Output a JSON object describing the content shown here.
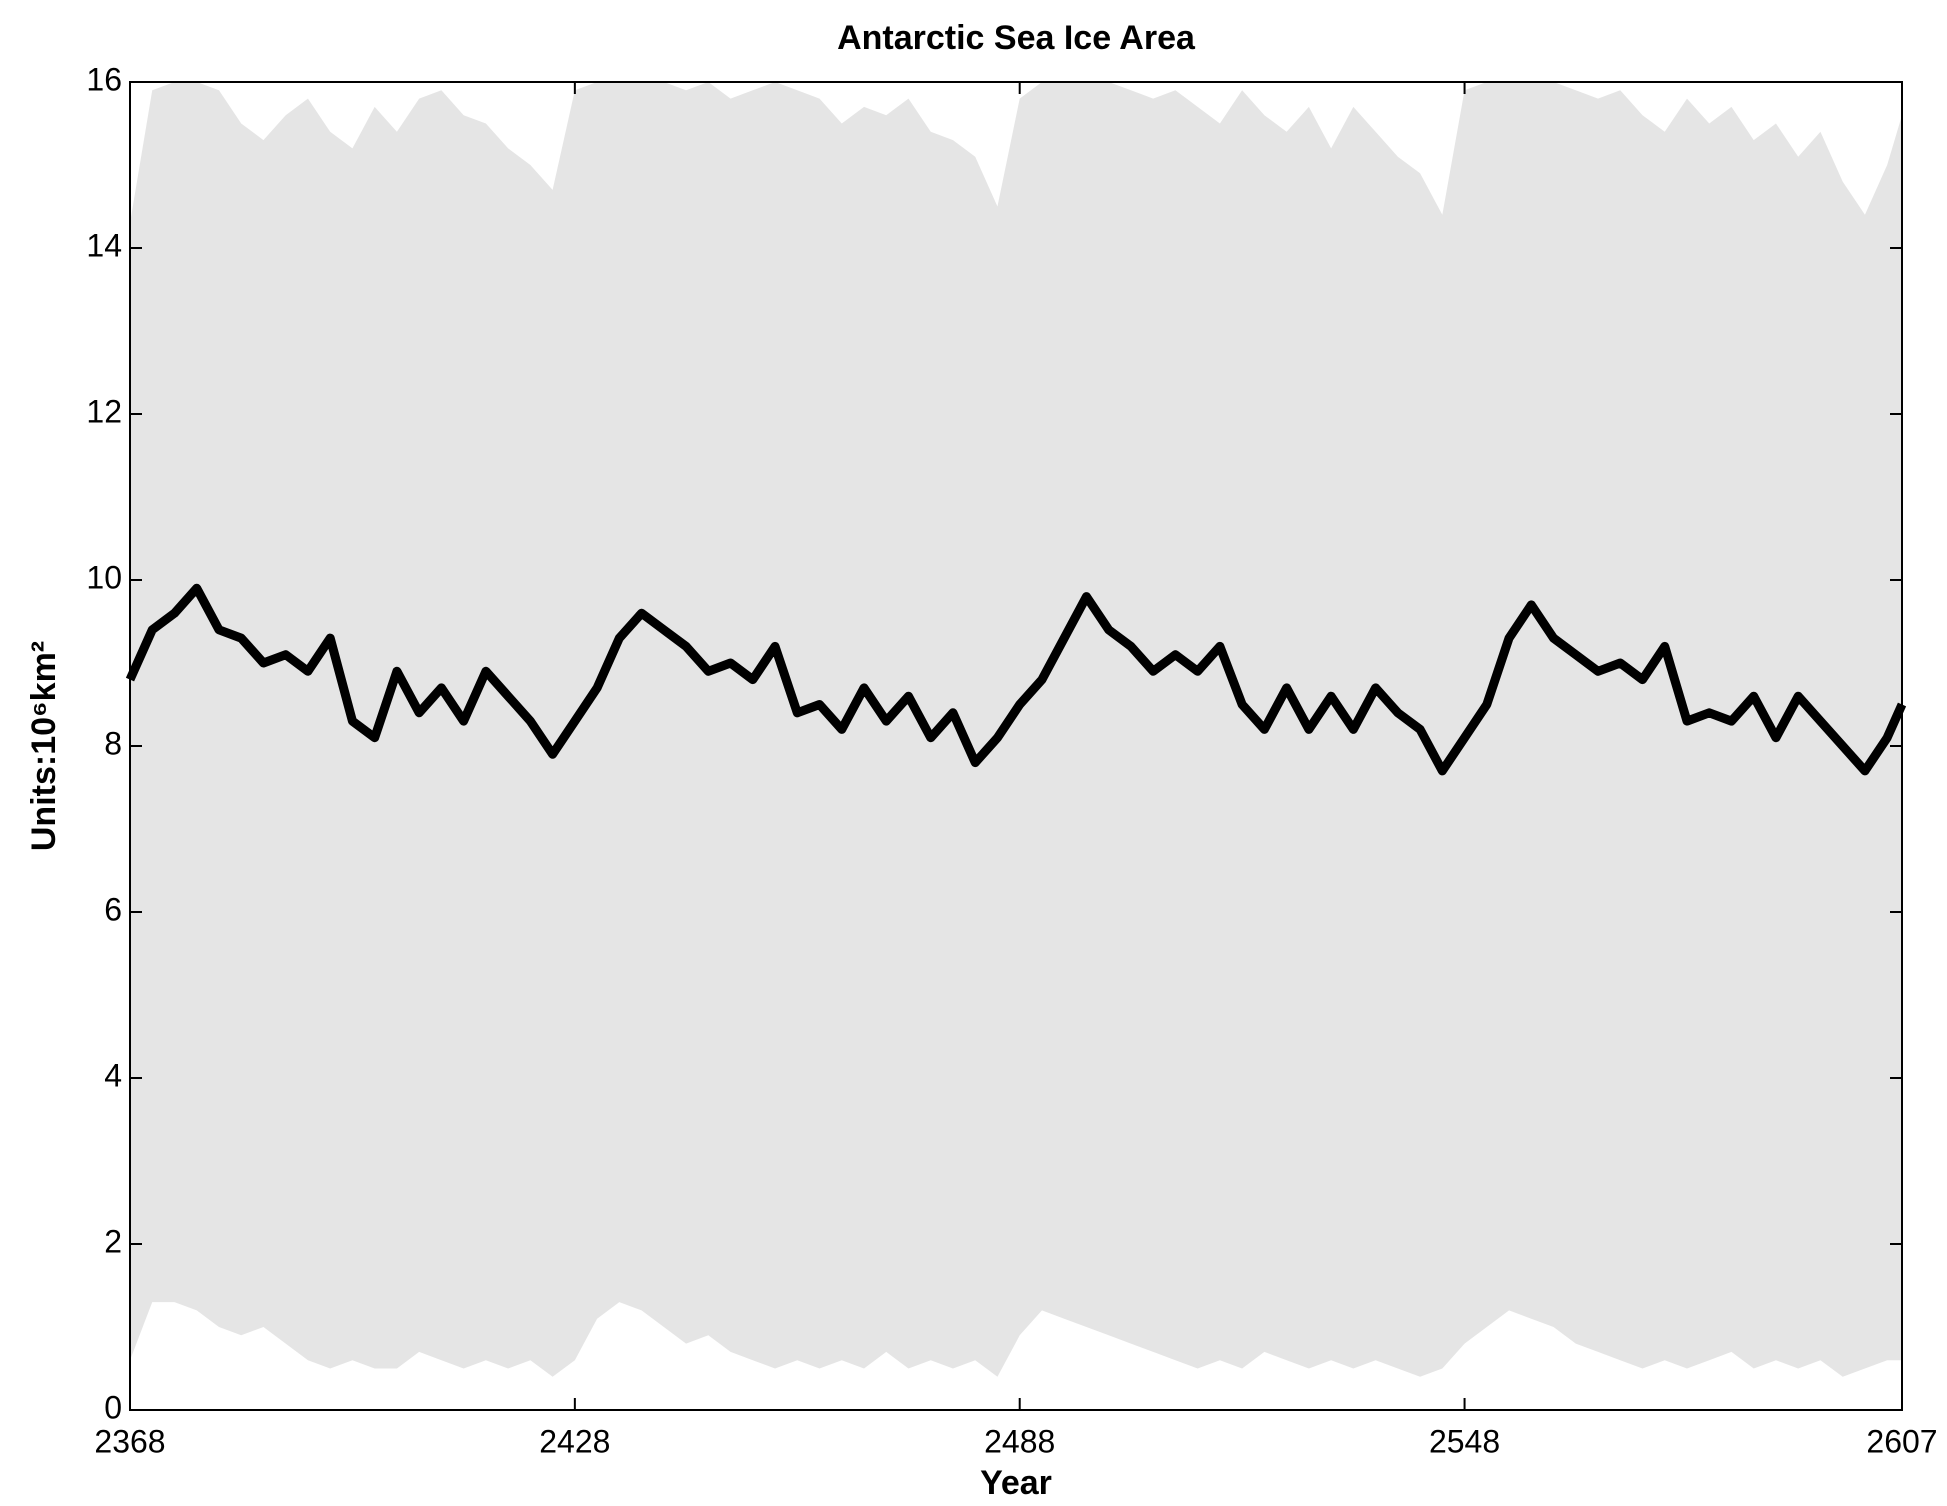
{
  "chart_data": {
    "type": "line",
    "title": "Antarctic Sea Ice Area",
    "x_label": "Year",
    "y_label": "Units:10⁶km²",
    "x": [
      2368,
      2371,
      2374,
      2377,
      2380,
      2383,
      2386,
      2389,
      2392,
      2395,
      2398,
      2401,
      2404,
      2407,
      2410,
      2413,
      2416,
      2419,
      2422,
      2425,
      2428,
      2431,
      2434,
      2437,
      2440,
      2443,
      2446,
      2449,
      2452,
      2455,
      2458,
      2461,
      2464,
      2467,
      2470,
      2473,
      2476,
      2479,
      2482,
      2485,
      2488,
      2491,
      2494,
      2497,
      2500,
      2503,
      2506,
      2509,
      2512,
      2515,
      2518,
      2521,
      2524,
      2527,
      2530,
      2533,
      2536,
      2539,
      2542,
      2545,
      2548,
      2551,
      2554,
      2557,
      2560,
      2563,
      2566,
      2569,
      2572,
      2575,
      2578,
      2581,
      2584,
      2587,
      2590,
      2593,
      2596,
      2599,
      2602,
      2605,
      2607
    ],
    "series": [
      {
        "color": "#000000",
        "values": [
          8.8,
          9.4,
          9.6,
          9.9,
          9.4,
          9.3,
          9.0,
          9.1,
          8.9,
          9.3,
          8.3,
          8.1,
          8.9,
          8.4,
          8.7,
          8.3,
          8.9,
          8.6,
          8.3,
          7.9,
          8.3,
          8.7,
          9.3,
          9.6,
          9.4,
          9.2,
          8.9,
          9.0,
          8.8,
          9.2,
          8.4,
          8.5,
          8.2,
          8.7,
          8.3,
          8.6,
          8.1,
          8.4,
          7.8,
          8.1,
          8.5,
          8.8,
          9.3,
          9.8,
          9.4,
          9.2,
          8.9,
          9.1,
          8.9,
          9.2,
          8.5,
          8.2,
          8.7,
          8.2,
          8.6,
          8.2,
          8.7,
          8.4,
          8.2,
          7.7,
          8.1,
          8.5,
          9.3,
          9.7,
          9.3,
          9.1,
          8.9,
          9.0,
          8.8,
          9.2,
          8.3,
          8.4,
          8.3,
          8.6,
          8.1,
          8.6,
          8.3,
          8.0,
          7.7,
          8.1,
          8.5
        ]
      }
    ],
    "band": {
      "color": "#e5e5e5",
      "upper": [
        14.3,
        15.9,
        16,
        16,
        15.9,
        15.5,
        15.3,
        15.6,
        15.8,
        15.4,
        15.2,
        15.7,
        15.4,
        15.8,
        15.9,
        15.6,
        15.5,
        15.2,
        15.0,
        14.7,
        15.9,
        16,
        16,
        16,
        16,
        15.9,
        16,
        15.8,
        15.9,
        16,
        15.9,
        15.8,
        15.5,
        15.7,
        15.6,
        15.8,
        15.4,
        15.3,
        15.1,
        14.5,
        15.8,
        16,
        16,
        16,
        16,
        15.9,
        15.8,
        15.9,
        15.7,
        15.5,
        15.9,
        15.6,
        15.4,
        15.7,
        15.2,
        15.7,
        15.4,
        15.1,
        14.9,
        14.4,
        15.9,
        16,
        16,
        16,
        16,
        15.9,
        15.8,
        15.9,
        15.6,
        15.4,
        15.8,
        15.5,
        15.7,
        15.3,
        15.5,
        15.1,
        15.4,
        14.8,
        14.4,
        15.0,
        15.6
      ],
      "lower": [
        0.6,
        1.3,
        1.3,
        1.2,
        1.0,
        0.9,
        1.0,
        0.8,
        0.6,
        0.5,
        0.6,
        0.5,
        0.5,
        0.7,
        0.6,
        0.5,
        0.6,
        0.5,
        0.6,
        0.4,
        0.6,
        1.1,
        1.3,
        1.2,
        1.0,
        0.8,
        0.9,
        0.7,
        0.6,
        0.5,
        0.6,
        0.5,
        0.6,
        0.5,
        0.7,
        0.5,
        0.6,
        0.5,
        0.6,
        0.4,
        0.9,
        1.2,
        1.1,
        1.0,
        0.9,
        0.8,
        0.7,
        0.6,
        0.5,
        0.6,
        0.5,
        0.7,
        0.6,
        0.5,
        0.6,
        0.5,
        0.6,
        0.5,
        0.4,
        0.5,
        0.8,
        1.0,
        1.2,
        1.1,
        1.0,
        0.8,
        0.7,
        0.6,
        0.5,
        0.6,
        0.5,
        0.6,
        0.7,
        0.5,
        0.6,
        0.5,
        0.6,
        0.4,
        0.5,
        0.6,
        0.6
      ]
    },
    "xlim": [
      2368,
      2607
    ],
    "xticks": [
      2368,
      2428,
      2488,
      2548,
      2607
    ],
    "ylim": [
      0,
      16
    ],
    "yticks": [
      0,
      2,
      4,
      6,
      8,
      10,
      12,
      14,
      16
    ]
  }
}
